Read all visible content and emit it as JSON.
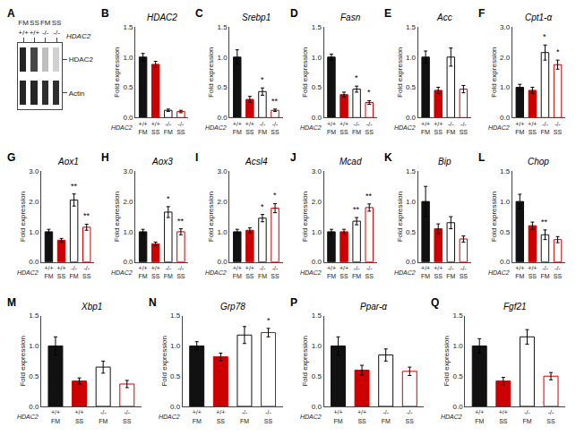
{
  "chart_data": [
    {
      "type": "heatmap",
      "panel": "A",
      "categories": [
        "FM",
        "SS",
        "FM",
        "SS"
      ],
      "genotypes": [
        "+/+",
        "+/+",
        "-/-",
        "-/-"
      ],
      "genotype_label": "HDAC2",
      "rows": [
        "HDAC2",
        "Actin"
      ],
      "cells": [
        [
          0.15,
          0.28,
          0.75,
          0.82
        ],
        [
          0.15,
          0.15,
          0.18,
          0.18
        ]
      ],
      "zlim": [
        0,
        1
      ]
    },
    {
      "type": "bar",
      "panel": "B",
      "title": "HDAC2",
      "ylabel": "Fold expression",
      "categories": [
        "FM",
        "SS",
        "FM",
        "SS"
      ],
      "genotypes": [
        "+/+",
        "+/+",
        "-/-",
        "-/-"
      ],
      "genotype_label": "HDAC2",
      "values": [
        1.0,
        0.88,
        0.12,
        0.1
      ],
      "errors": [
        0.06,
        0.05,
        0.02,
        0.02
      ],
      "colors": [
        "#111111",
        "#cc0000",
        "#ffffff",
        "#ffffff"
      ],
      "edge_colors": [
        "#111111",
        "#cc0000",
        "#111111",
        "#cc0000"
      ],
      "stars": [
        null,
        null,
        null,
        null
      ],
      "ylim": [
        0,
        1.5
      ],
      "yticks": [
        {
          "value": 0,
          "label": "0.0"
        },
        0.5,
        {
          "value": 1,
          "label": "1.0"
        },
        1.5
      ],
      "grid": false
    },
    {
      "type": "bar",
      "panel": "C",
      "title": "Srebp1",
      "ylabel": "Fold expression",
      "categories": [
        "FM",
        "SS",
        "FM",
        "SS"
      ],
      "genotypes": [
        "+/+",
        "+/+",
        "-/-",
        "-/-"
      ],
      "genotype_label": "HDAC2",
      "values": [
        1.0,
        0.3,
        0.43,
        0.12
      ],
      "errors": [
        0.12,
        0.05,
        0.06,
        0.02
      ],
      "colors": [
        "#111111",
        "#cc0000",
        "#ffffff",
        "#ffffff"
      ],
      "edge_colors": [
        "#111111",
        "#cc0000",
        "#111111",
        "#cc0000"
      ],
      "stars": [
        null,
        null,
        "*",
        "**"
      ],
      "ylim": [
        0,
        1.5
      ],
      "yticks": [
        {
          "value": 0,
          "label": "0.0"
        },
        0.5,
        {
          "value": 1,
          "label": "1.0"
        },
        1.5
      ],
      "grid": false
    },
    {
      "type": "bar",
      "panel": "D",
      "title": "Fasn",
      "ylabel": "Fold expression",
      "categories": [
        "FM",
        "SS",
        "FM",
        "SS"
      ],
      "genotypes": [
        "+/+",
        "+/+",
        "-/-",
        "-/-"
      ],
      "genotype_label": "HDAC2",
      "values": [
        1.0,
        0.38,
        0.47,
        0.25
      ],
      "errors": [
        0.05,
        0.04,
        0.05,
        0.03
      ],
      "colors": [
        "#111111",
        "#cc0000",
        "#ffffff",
        "#ffffff"
      ],
      "edge_colors": [
        "#111111",
        "#cc0000",
        "#111111",
        "#cc0000"
      ],
      "stars": [
        null,
        null,
        "*",
        "*"
      ],
      "ylim": [
        0,
        1.5
      ],
      "yticks": [
        {
          "value": 0,
          "label": "0.0"
        },
        0.5,
        {
          "value": 1,
          "label": "1.0"
        },
        1.5
      ],
      "grid": false
    },
    {
      "type": "bar",
      "panel": "E",
      "title": "Acc",
      "ylabel": "Fold expression",
      "categories": [
        "FM",
        "SS",
        "FM",
        "SS"
      ],
      "genotypes": [
        "+/+",
        "+/+",
        "-/-",
        "-/-"
      ],
      "genotype_label": "HDAC2",
      "values": [
        1.0,
        0.45,
        1.0,
        0.47
      ],
      "errors": [
        0.1,
        0.05,
        0.15,
        0.06
      ],
      "colors": [
        "#111111",
        "#cc0000",
        "#ffffff",
        "#ffffff"
      ],
      "edge_colors": [
        "#111111",
        "#cc0000",
        "#111111",
        "#cc0000"
      ],
      "stars": [
        null,
        null,
        null,
        null
      ],
      "ylim": [
        0,
        1.5
      ],
      "yticks": [
        {
          "value": 0,
          "label": "0.0"
        },
        0.5,
        {
          "value": 1,
          "label": "1.0"
        },
        1.5
      ],
      "grid": false
    },
    {
      "type": "bar",
      "panel": "F",
      "title": "Cpt1-α",
      "ylabel": "Fold expression",
      "categories": [
        "FM",
        "SS",
        "FM",
        "SS"
      ],
      "genotypes": [
        "+/+",
        "+/+",
        "-/-",
        "-/-"
      ],
      "genotype_label": "HDAC2",
      "values": [
        1.0,
        0.9,
        2.15,
        1.75
      ],
      "errors": [
        0.1,
        0.1,
        0.25,
        0.15
      ],
      "colors": [
        "#111111",
        "#cc0000",
        "#ffffff",
        "#ffffff"
      ],
      "edge_colors": [
        "#111111",
        "#cc0000",
        "#111111",
        "#cc0000"
      ],
      "stars": [
        null,
        null,
        "*",
        "*"
      ],
      "ylim": [
        0,
        3.0
      ],
      "yticks": [
        {
          "value": 0,
          "label": "0.0"
        },
        {
          "value": 1,
          "label": "1.0"
        },
        {
          "value": 2,
          "label": "2.0"
        },
        {
          "value": 3,
          "label": "3.0"
        }
      ],
      "grid": false
    },
    {
      "type": "bar",
      "panel": "G",
      "title": "Aox1",
      "ylabel": "Fold expression",
      "categories": [
        "FM",
        "SS",
        "FM",
        "SS"
      ],
      "genotypes": [
        "+/+",
        "+/+",
        "-/-",
        "-/-"
      ],
      "genotype_label": "HDAC2",
      "values": [
        1.0,
        0.72,
        2.05,
        1.15
      ],
      "errors": [
        0.08,
        0.06,
        0.2,
        0.1
      ],
      "colors": [
        "#111111",
        "#cc0000",
        "#ffffff",
        "#ffffff"
      ],
      "edge_colors": [
        "#111111",
        "#cc0000",
        "#111111",
        "#cc0000"
      ],
      "stars": [
        null,
        null,
        "**",
        "**"
      ],
      "ylim": [
        0,
        3.0
      ],
      "yticks": [
        {
          "value": 0,
          "label": "0.0"
        },
        {
          "value": 1,
          "label": "1.0"
        },
        {
          "value": 2,
          "label": "2.0"
        },
        {
          "value": 3,
          "label": "3.0"
        }
      ],
      "grid": false
    },
    {
      "type": "bar",
      "panel": "H",
      "title": "Aox3",
      "ylabel": "Fold expression",
      "categories": [
        "FM",
        "SS",
        "FM",
        "SS"
      ],
      "genotypes": [
        "+/+",
        "+/+",
        "-/-",
        "-/-"
      ],
      "genotype_label": "HDAC2",
      "values": [
        1.0,
        0.6,
        1.65,
        1.0
      ],
      "errors": [
        0.08,
        0.06,
        0.18,
        0.1
      ],
      "colors": [
        "#111111",
        "#cc0000",
        "#ffffff",
        "#ffffff"
      ],
      "edge_colors": [
        "#111111",
        "#cc0000",
        "#111111",
        "#cc0000"
      ],
      "stars": [
        null,
        null,
        "*",
        "**"
      ],
      "ylim": [
        0,
        3.0
      ],
      "yticks": [
        {
          "value": 0,
          "label": "0.0"
        },
        {
          "value": 1,
          "label": "1.0"
        },
        {
          "value": 2,
          "label": "2.0"
        },
        {
          "value": 3,
          "label": "3.0"
        }
      ],
      "grid": false
    },
    {
      "type": "bar",
      "panel": "I",
      "title": "Acsl4",
      "ylabel": "Fold expression",
      "categories": [
        "FM",
        "SS",
        "FM",
        "SS"
      ],
      "genotypes": [
        "+/+",
        "+/+",
        "-/-",
        "-/-"
      ],
      "genotype_label": "HDAC2",
      "values": [
        1.0,
        1.05,
        1.45,
        1.78
      ],
      "errors": [
        0.08,
        0.08,
        0.12,
        0.15
      ],
      "colors": [
        "#111111",
        "#cc0000",
        "#ffffff",
        "#ffffff"
      ],
      "edge_colors": [
        "#111111",
        "#cc0000",
        "#111111",
        "#cc0000"
      ],
      "stars": [
        null,
        null,
        "*",
        "*"
      ],
      "ylim": [
        0,
        3.0
      ],
      "yticks": [
        {
          "value": 0,
          "label": "0.0"
        },
        {
          "value": 1,
          "label": "1.0"
        },
        {
          "value": 2,
          "label": "2.0"
        },
        {
          "value": 3,
          "label": "3.0"
        }
      ],
      "grid": false
    },
    {
      "type": "bar",
      "panel": "J",
      "title": "Mcad",
      "ylabel": "Fold expression",
      "categories": [
        "FM",
        "SS",
        "FM",
        "SS"
      ],
      "genotypes": [
        "+/+",
        "+/+",
        "-/-",
        "-/-"
      ],
      "genotype_label": "HDAC2",
      "values": [
        1.0,
        1.0,
        1.35,
        1.8
      ],
      "errors": [
        0.08,
        0.08,
        0.12,
        0.12
      ],
      "colors": [
        "#111111",
        "#cc0000",
        "#ffffff",
        "#ffffff"
      ],
      "edge_colors": [
        "#111111",
        "#cc0000",
        "#111111",
        "#cc0000"
      ],
      "stars": [
        null,
        null,
        "**",
        "**"
      ],
      "ylim": [
        0,
        3.0
      ],
      "yticks": [
        {
          "value": 0,
          "label": "0.0"
        },
        {
          "value": 1,
          "label": "1.0"
        },
        {
          "value": 2,
          "label": "2.0"
        },
        {
          "value": 3,
          "label": "3.0"
        }
      ],
      "grid": false
    },
    {
      "type": "bar",
      "panel": "K",
      "title": "Bip",
      "ylabel": "Fold expression",
      "categories": [
        "FM",
        "SS",
        "FM",
        "SS"
      ],
      "genotypes": [
        "+/+",
        "+/+",
        "-/-",
        "-/-"
      ],
      "genotype_label": "HDAC2",
      "values": [
        1.0,
        0.55,
        0.65,
        0.38
      ],
      "errors": [
        0.25,
        0.08,
        0.1,
        0.05
      ],
      "colors": [
        "#111111",
        "#cc0000",
        "#ffffff",
        "#ffffff"
      ],
      "edge_colors": [
        "#111111",
        "#cc0000",
        "#111111",
        "#cc0000"
      ],
      "stars": [
        null,
        null,
        null,
        null
      ],
      "ylim": [
        0,
        1.5
      ],
      "yticks": [
        {
          "value": 0,
          "label": "0.0"
        },
        0.5,
        {
          "value": 1,
          "label": "1.0"
        },
        1.5
      ],
      "grid": false
    },
    {
      "type": "bar",
      "panel": "L",
      "title": "Chop",
      "ylabel": "Fold expression",
      "categories": [
        "FM",
        "SS",
        "FM",
        "SS"
      ],
      "genotypes": [
        "+/+",
        "+/+",
        "-/-",
        "-/-"
      ],
      "genotype_label": "HDAC2",
      "values": [
        1.0,
        0.6,
        0.45,
        0.37
      ],
      "errors": [
        0.12,
        0.06,
        0.08,
        0.05
      ],
      "colors": [
        "#111111",
        "#cc0000",
        "#ffffff",
        "#ffffff"
      ],
      "edge_colors": [
        "#111111",
        "#cc0000",
        "#111111",
        "#cc0000"
      ],
      "stars": [
        null,
        null,
        "**",
        null
      ],
      "ylim": [
        0,
        1.5
      ],
      "yticks": [
        {
          "value": 0,
          "label": "0.0"
        },
        0.5,
        {
          "value": 1,
          "label": "1.0"
        },
        1.5
      ],
      "grid": false
    },
    {
      "type": "bar",
      "panel": "M",
      "title": "Xbp1",
      "ylabel": "Fold expression",
      "categories": [
        "FM",
        "SS",
        "FM",
        "SS"
      ],
      "genotypes": [
        "+/+",
        "+/+",
        "-/-",
        "-/-"
      ],
      "genotype_label": "HDAC2",
      "values": [
        1.0,
        0.42,
        0.65,
        0.37
      ],
      "errors": [
        0.15,
        0.05,
        0.1,
        0.06
      ],
      "colors": [
        "#111111",
        "#cc0000",
        "#ffffff",
        "#ffffff"
      ],
      "edge_colors": [
        "#111111",
        "#cc0000",
        "#111111",
        "#cc0000"
      ],
      "stars": [
        null,
        null,
        null,
        null
      ],
      "ylim": [
        0,
        1.5
      ],
      "yticks": [
        {
          "value": 0,
          "label": "0.0"
        },
        0.5,
        {
          "value": 1,
          "label": "1.0"
        },
        1.5
      ],
      "grid": false
    },
    {
      "type": "bar",
      "panel": "N",
      "title": "Grp78",
      "ylabel": "Fold expression",
      "categories": [
        "FM",
        "SS",
        "FM",
        "SS"
      ],
      "genotypes": [
        "+/+",
        "+/+",
        "-/-",
        "-/-"
      ],
      "genotype_label": "HDAC2",
      "values": [
        1.0,
        0.82,
        1.18,
        1.22
      ],
      "errors": [
        0.07,
        0.06,
        0.14,
        0.07
      ],
      "colors": [
        "#111111",
        "#cc0000",
        "#ffffff",
        "#ffffff"
      ],
      "edge_colors": [
        "#111111",
        "#cc0000",
        "#111111",
        "#cc0000"
      ],
      "stars": [
        null,
        null,
        null,
        "*"
      ],
      "ylim": [
        0,
        1.5
      ],
      "yticks": [
        {
          "value": 0,
          "label": "0.0"
        },
        0.5,
        {
          "value": 1,
          "label": "1.0"
        },
        1.5
      ],
      "grid": false
    },
    {
      "type": "bar",
      "panel": "P",
      "title": "Ppar-α",
      "ylabel": "Fold expression",
      "categories": [
        "FM",
        "SS",
        "FM",
        "SS"
      ],
      "genotypes": [
        "+/+",
        "+/+",
        "-/-",
        "-/-"
      ],
      "genotype_label": "HDAC2",
      "values": [
        1.0,
        0.6,
        0.85,
        0.58
      ],
      "errors": [
        0.15,
        0.08,
        0.1,
        0.07
      ],
      "colors": [
        "#111111",
        "#cc0000",
        "#ffffff",
        "#ffffff"
      ],
      "edge_colors": [
        "#111111",
        "#cc0000",
        "#111111",
        "#cc0000"
      ],
      "stars": [
        null,
        null,
        null,
        null
      ],
      "ylim": [
        0,
        1.5
      ],
      "yticks": [
        {
          "value": 0,
          "label": "0.0"
        },
        0.5,
        {
          "value": 1,
          "label": "1.0"
        },
        1.5
      ],
      "grid": false
    },
    {
      "type": "bar",
      "panel": "Q",
      "title": "Fgf21",
      "ylabel": "Fold expression",
      "categories": [
        "FM",
        "SS",
        "FM",
        "SS"
      ],
      "genotypes": [
        "+/+",
        "+/+",
        "-/-",
        "-/-"
      ],
      "genotype_label": "HDAC2",
      "values": [
        1.0,
        0.42,
        1.15,
        0.5
      ],
      "errors": [
        0.12,
        0.06,
        0.12,
        0.06
      ],
      "colors": [
        "#111111",
        "#cc0000",
        "#ffffff",
        "#ffffff"
      ],
      "edge_colors": [
        "#111111",
        "#cc0000",
        "#111111",
        "#cc0000"
      ],
      "stars": [
        null,
        null,
        null,
        null
      ],
      "ylim": [
        0,
        1.5
      ],
      "yticks": [
        {
          "value": 0,
          "label": "0.0"
        },
        0.5,
        {
          "value": 1,
          "label": "1.0"
        },
        1.5
      ],
      "grid": false
    }
  ]
}
